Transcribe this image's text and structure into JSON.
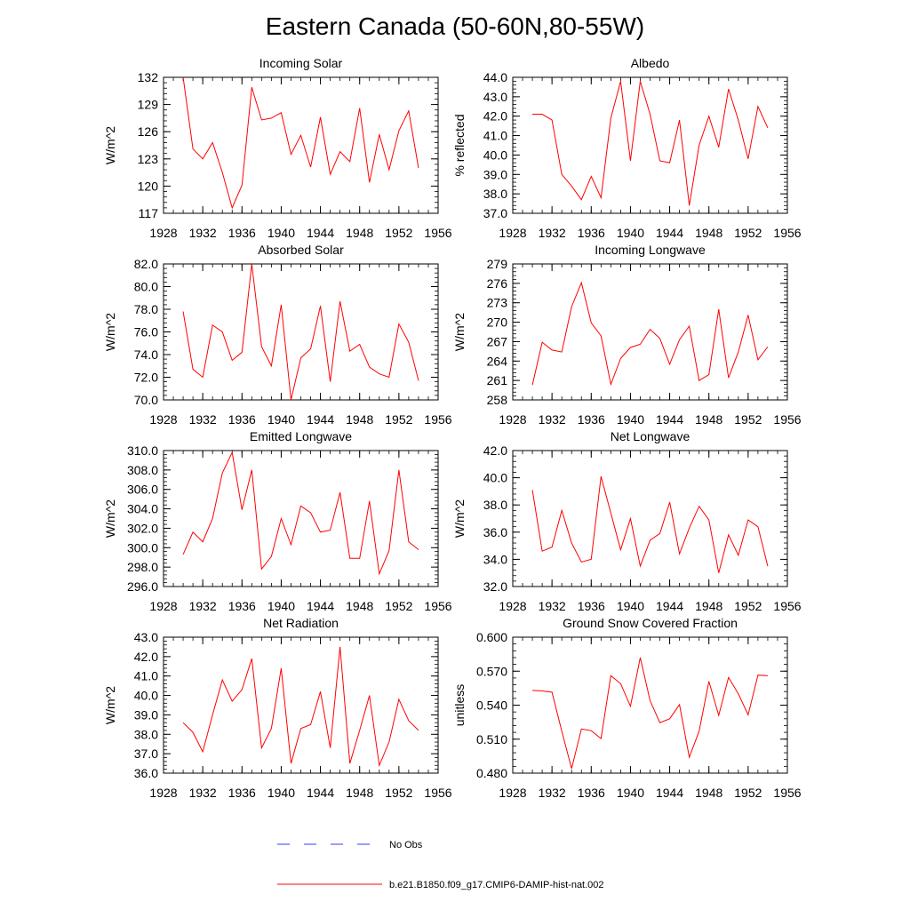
{
  "title": "Eastern Canada (50-60N,80-55W)",
  "xticks": [
    "1928",
    "1932",
    "1936",
    "1940",
    "1944",
    "1948",
    "1952",
    "1956"
  ],
  "years": [
    1930,
    1931,
    1932,
    1933,
    1934,
    1935,
    1936,
    1937,
    1938,
    1939,
    1940,
    1941,
    1942,
    1943,
    1944,
    1945,
    1946,
    1947,
    1948,
    1949,
    1950,
    1951,
    1952,
    1953,
    1954
  ],
  "series_color": "#ff0000",
  "legend": {
    "no_obs": "No Obs",
    "no_obs_color": "#3a3aff",
    "model": "b.e21.B1850.f09_g17.CMIP6-DAMIP-hist-nat.002"
  },
  "chart_data": [
    {
      "type": "line",
      "title": "Incoming Solar",
      "ylabel": "W/m^2",
      "ylim": [
        117,
        132
      ],
      "yticks": [
        "117",
        "120",
        "123",
        "126",
        "129",
        "132"
      ],
      "values": [
        132.0,
        124.1,
        123.0,
        124.8,
        121.5,
        117.6,
        120.1,
        130.9,
        127.3,
        127.5,
        128.1,
        123.5,
        125.6,
        122.1,
        127.6,
        121.3,
        123.8,
        122.7,
        128.6,
        120.4,
        125.7,
        121.8,
        126.1,
        128.3,
        122.0
      ]
    },
    {
      "type": "line",
      "title": "Albedo",
      "ylabel": "% reflected",
      "ylim": [
        37.0,
        44.0
      ],
      "yticks": [
        "37.0",
        "38.0",
        "39.0",
        "40.0",
        "41.0",
        "42.0",
        "43.0",
        "44.0"
      ],
      "values": [
        42.1,
        42.1,
        41.8,
        39.0,
        38.4,
        37.7,
        38.9,
        37.8,
        41.9,
        43.8,
        39.7,
        43.8,
        42.1,
        39.7,
        39.6,
        41.8,
        37.4,
        40.5,
        42.0,
        40.4,
        43.4,
        41.8,
        39.8,
        42.5,
        41.4
      ]
    },
    {
      "type": "line",
      "title": "Absorbed Solar",
      "ylabel": "W/m^2",
      "ylim": [
        70.0,
        82.0
      ],
      "yticks": [
        "70.0",
        "72.0",
        "74.0",
        "76.0",
        "78.0",
        "80.0",
        "82.0"
      ],
      "values": [
        77.8,
        72.7,
        72.0,
        76.6,
        76.0,
        73.5,
        74.2,
        82.0,
        74.7,
        73.0,
        78.4,
        70.0,
        73.7,
        74.5,
        78.3,
        71.6,
        78.7,
        74.3,
        74.9,
        72.9,
        72.3,
        72.0,
        76.7,
        75.1,
        71.7
      ]
    },
    {
      "type": "line",
      "title": "Incoming Longwave",
      "ylabel": "W/m^2",
      "ylim": [
        258,
        279
      ],
      "yticks": [
        "258",
        "261",
        "264",
        "267",
        "270",
        "273",
        "276",
        "279"
      ],
      "values": [
        260.3,
        266.9,
        265.7,
        265.4,
        272.4,
        276.1,
        269.9,
        267.9,
        260.4,
        264.4,
        266.1,
        266.6,
        268.9,
        267.5,
        263.5,
        267.3,
        269.4,
        261.0,
        261.9,
        272.0,
        261.4,
        265.4,
        271.1,
        264.2,
        266.2
      ]
    },
    {
      "type": "line",
      "title": "Emitted Longwave",
      "ylabel": "W/m^2",
      "ylim": [
        296.0,
        310.0
      ],
      "yticks": [
        "296.0",
        "298.0",
        "300.0",
        "302.0",
        "304.0",
        "306.0",
        "308.0",
        "310.0"
      ],
      "values": [
        299.3,
        301.6,
        300.6,
        303.0,
        307.7,
        309.8,
        303.9,
        308.0,
        297.8,
        299.1,
        303.0,
        300.3,
        304.3,
        303.6,
        301.6,
        301.8,
        305.7,
        298.9,
        298.9,
        304.8,
        297.3,
        299.7,
        308.0,
        300.6,
        299.8
      ]
    },
    {
      "type": "line",
      "title": "Net Longwave",
      "ylabel": "W/m^2",
      "ylim": [
        32.0,
        42.0
      ],
      "yticks": [
        "32.0",
        "34.0",
        "36.0",
        "38.0",
        "40.0",
        "42.0"
      ],
      "values": [
        39.1,
        34.6,
        34.9,
        37.6,
        35.2,
        33.8,
        34.0,
        40.1,
        37.4,
        34.7,
        37.0,
        33.5,
        35.4,
        35.9,
        38.2,
        34.4,
        36.3,
        37.9,
        36.9,
        33.0,
        35.8,
        34.3,
        36.9,
        36.4,
        33.5
      ]
    },
    {
      "type": "line",
      "title": "Net Radiation",
      "ylabel": "W/m^2",
      "ylim": [
        36.0,
        43.0
      ],
      "yticks": [
        "36.0",
        "37.0",
        "38.0",
        "39.0",
        "40.0",
        "41.0",
        "42.0",
        "43.0"
      ],
      "values": [
        38.6,
        38.1,
        37.1,
        39.0,
        40.8,
        39.7,
        40.3,
        41.9,
        37.3,
        38.3,
        41.4,
        36.5,
        38.3,
        38.5,
        40.2,
        37.3,
        42.5,
        36.5,
        38.2,
        40.0,
        36.4,
        37.6,
        39.8,
        38.7,
        38.2
      ]
    },
    {
      "type": "line",
      "title": "Ground Snow Covered Fraction",
      "ylabel": "unitless",
      "ylim": [
        0.48,
        0.6
      ],
      "yticks": [
        "0.480",
        "0.510",
        "0.540",
        "0.570",
        "0.600"
      ],
      "values": [
        0.553,
        0.5525,
        0.5515,
        0.517,
        0.484,
        0.519,
        0.5175,
        0.5105,
        0.566,
        0.559,
        0.539,
        0.582,
        0.544,
        0.5245,
        0.528,
        0.5405,
        0.494,
        0.517,
        0.561,
        0.531,
        0.5645,
        0.55,
        0.5315,
        0.5665,
        0.566
      ]
    }
  ]
}
